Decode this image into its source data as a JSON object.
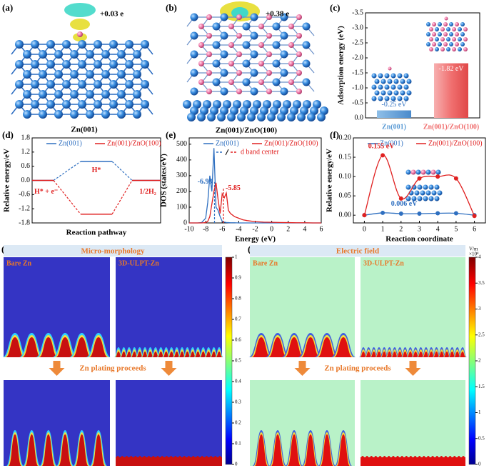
{
  "chart_data": [
    {
      "type": "bar",
      "label": "(c)",
      "ylabel": "Adsorption energy (eV)",
      "categories": [
        "Zn(001)",
        "Zn(001)/ZnO(100)"
      ],
      "values": [
        -0.25,
        -1.82
      ],
      "value_labels": [
        "-0.25 eV",
        "-1.82 eV"
      ],
      "colors": [
        "#5b9bd5",
        "#f07070"
      ],
      "ylim": [
        0,
        -3.5
      ],
      "yticks": [
        {
          "value": 0,
          "label": "0.0"
        },
        -0.5,
        {
          "value": -1,
          "label": "-1.0"
        },
        -1.5,
        {
          "value": -2,
          "label": "-2.0"
        },
        -2.5,
        {
          "value": -3,
          "label": "-3.0"
        },
        -3.5
      ]
    },
    {
      "type": "energy",
      "label": "(d)",
      "xlabel": "Reaction pathway",
      "ylabel": "Relative energy/eV",
      "annotations": [
        "H* + e⁻",
        "H*",
        "1/2H₂"
      ],
      "series": [
        {
          "name": "Zn(001)",
          "color": "#2e6fc0",
          "values": [
            0,
            0.8,
            0
          ]
        },
        {
          "name": "Zn(001)/ZnO(100)",
          "color": "#e02020",
          "values": [
            0,
            -1.43,
            0
          ]
        }
      ],
      "ylim": [
        -1.8,
        1.8
      ],
      "yticks": [
        -1.8,
        -1.2,
        -0.6,
        {
          "value": 0,
          "label": "0.0"
        },
        0.6,
        1.2,
        1.8
      ]
    },
    {
      "type": "line",
      "label": "(e)",
      "xlabel": "Energy (eV)",
      "ylabel": "DOS (states/eV)",
      "legend_extra": "d band center",
      "x": [
        -10,
        -9,
        -8.5,
        -8,
        -7.75,
        -7.5,
        -7.25,
        -7,
        -6.75,
        -6.5,
        -6.25,
        -6,
        -5.75,
        -5.5,
        -5.25,
        -5,
        -4.5,
        -4,
        -3.5,
        -3,
        -2,
        -1,
        0,
        1,
        2,
        3,
        4,
        5,
        6
      ],
      "series": [
        {
          "name": "Zn(001)",
          "color": "#2e6fc0",
          "d_band_center": -6.93,
          "values": [
            0,
            0,
            2,
            30,
            130,
            300,
            200,
            475,
            100,
            80,
            40,
            10,
            5,
            3,
            2,
            1,
            1,
            0,
            0,
            0,
            0,
            0,
            0,
            0,
            0,
            0,
            0,
            0,
            0
          ]
        },
        {
          "name": "Zn(001)/ZnO(100)",
          "color": "#e02020",
          "d_band_center": -5.85,
          "values": [
            0,
            0,
            0,
            2,
            10,
            40,
            120,
            200,
            255,
            150,
            60,
            185,
            160,
            190,
            80,
            60,
            40,
            30,
            20,
            15,
            8,
            5,
            4,
            3,
            2,
            1,
            1,
            0,
            0
          ]
        }
      ],
      "xlim": [
        -10,
        6
      ],
      "xticks": [
        -10,
        -8,
        -6,
        -4,
        -2,
        0,
        2,
        4,
        6
      ],
      "ylim": [
        0,
        540
      ],
      "yticks": [
        0,
        100,
        200,
        300,
        400,
        500
      ]
    },
    {
      "type": "line",
      "label": "(f)",
      "xlabel": "Reaction coordinate",
      "ylabel": "Relative energy/eV",
      "markers": true,
      "smooth": true,
      "x": [
        0,
        1,
        2,
        3,
        4,
        5,
        6
      ],
      "series": [
        {
          "name": "Zn(001)",
          "color": "#2e6fc0",
          "label": "0.006 eV",
          "values": [
            0,
            0.006,
            0.004,
            0.004,
            0.005,
            0.005,
            0
          ]
        },
        {
          "name": "Zn(001)/ZnO(100)",
          "color": "#e02020",
          "label": "0.155 eV",
          "values": [
            0,
            0.155,
            0.043,
            0.095,
            0.1,
            0.095,
            -0.002
          ]
        }
      ],
      "xlim": [
        -0.6,
        6.6
      ],
      "xticks": [
        0,
        1,
        2,
        3,
        4,
        5,
        6
      ],
      "ylim": [
        -0.02,
        0.2
      ],
      "yticks": [
        {
          "value": 0,
          "label": "0.00"
        },
        {
          "value": 0.05,
          "label": "0.05"
        },
        {
          "value": 0.1,
          "label": "0.10"
        },
        {
          "value": 0.15,
          "label": "0.15"
        },
        {
          "value": 0.2,
          "label": "0.20"
        }
      ]
    }
  ],
  "panels": {
    "a": {
      "label": "(a)",
      "charge": "+0.03 e",
      "caption": "Zn(001)"
    },
    "b": {
      "label": "(b)",
      "charge": "+0.38 e",
      "caption": "Zn(001)/ZnO(100)"
    },
    "g": {
      "label": "(g)",
      "title": "Micro-morphology",
      "left": "Bare Zn",
      "right": "3D-ULPT-Zn",
      "step": "Zn plating proceeds",
      "colorbar_lim": [
        0,
        1
      ],
      "colorbar_ticks": [
        0,
        0.1,
        0.2,
        0.3,
        0.4,
        0.5,
        0.6,
        0.7,
        0.8,
        0.9,
        1
      ]
    },
    "h": {
      "label": "(h)",
      "title": "Electric field",
      "left": "Bare Zn",
      "right": "3D-ULPT-Zn",
      "step": "Zn plating proceeds",
      "unit": "V/m",
      "scale": "×10⁴",
      "colorbar_lim": [
        0,
        4
      ],
      "colorbar_ticks": [
        0,
        0.5,
        1,
        1.5,
        2,
        2.5,
        3,
        3.5,
        4
      ]
    }
  }
}
